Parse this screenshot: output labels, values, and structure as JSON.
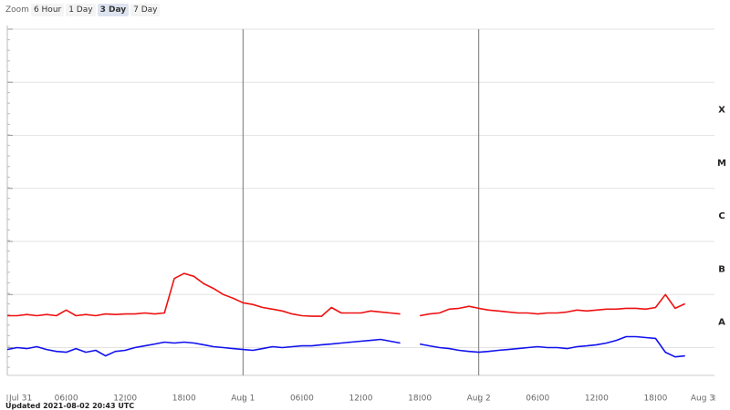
{
  "zoom": {
    "label": "Zoom",
    "buttons": [
      "6 Hour",
      "1 Day",
      "3 Day",
      "7 Day"
    ],
    "selected": 2
  },
  "footer": "Updated 2021-08-02 20:43 UTC",
  "chart_data": {
    "type": "line",
    "log_scale": true,
    "grid": true,
    "xlim": [
      0,
      72
    ],
    "xticks": [
      {
        "value": 0,
        "label": "Jul 31"
      },
      {
        "value": 6,
        "label": "06:00"
      },
      {
        "value": 12,
        "label": "12:00"
      },
      {
        "value": 18,
        "label": "18:00"
      },
      {
        "value": 24,
        "label": "Aug 1"
      },
      {
        "value": 30,
        "label": "06:00"
      },
      {
        "value": 36,
        "label": "12:00"
      },
      {
        "value": 42,
        "label": "18:00"
      },
      {
        "value": 48,
        "label": "Aug 2"
      },
      {
        "value": 54,
        "label": "06:00"
      },
      {
        "value": 60,
        "label": "12:00"
      },
      {
        "value": 66,
        "label": "18:00"
      },
      {
        "value": 72,
        "label": "Aug 3"
      }
    ],
    "day_lines": [
      24,
      48
    ],
    "ylim": [
      3e-09,
      0.01
    ],
    "yticks": [
      {
        "value": 1e-08,
        "label": null
      },
      {
        "value": 1e-07,
        "label": null
      },
      {
        "value": 1e-06,
        "label": null
      },
      {
        "value": 1e-05,
        "label": null
      },
      {
        "value": 0.0001,
        "label": null
      },
      {
        "value": 0.001,
        "label": null
      },
      {
        "value": 0.01,
        "label": null
      }
    ],
    "y2lim": [
      3e-09,
      0.01
    ],
    "y2ticks": [
      {
        "value": 3e-08,
        "label": "A"
      },
      {
        "value": 3e-07,
        "label": "B"
      },
      {
        "value": 3e-06,
        "label": "C"
      },
      {
        "value": 3e-05,
        "label": "M"
      },
      {
        "value": 0.0003,
        "label": "X"
      }
    ],
    "x": [
      0,
      1,
      2,
      3,
      4,
      5,
      6,
      7,
      8,
      9,
      10,
      11,
      12,
      13,
      14,
      15,
      16,
      17,
      18,
      19,
      20,
      21,
      22,
      23,
      24,
      25,
      26,
      27,
      28,
      29,
      30,
      31,
      32,
      33,
      34,
      35,
      36,
      37,
      38,
      39,
      40,
      41,
      42,
      43,
      44,
      45,
      46,
      47,
      48,
      49,
      50,
      51,
      52,
      53,
      54,
      55,
      56,
      57,
      58,
      59,
      60,
      61,
      62,
      63,
      64,
      65,
      66,
      67,
      68,
      69
    ],
    "series": [
      {
        "color": "#ee1111",
        "values": [
          4e-08,
          4e-08,
          4.2e-08,
          4e-08,
          4.2e-08,
          4e-08,
          5.1e-08,
          4e-08,
          4.2e-08,
          4e-08,
          4.3e-08,
          4.2e-08,
          4.3e-08,
          4.3e-08,
          4.5e-08,
          4.3e-08,
          4.5e-08,
          2e-07,
          2.5e-07,
          2.2e-07,
          1.6e-07,
          1.3e-07,
          1e-07,
          8.5e-08,
          7e-08,
          6.5e-08,
          5.7e-08,
          5.3e-08,
          4.9e-08,
          4.3e-08,
          4e-08,
          3.9e-08,
          3.9e-08,
          5.7e-08,
          4.5e-08,
          4.5e-08,
          4.5e-08,
          4.9e-08,
          4.7e-08,
          4.5e-08,
          4.3e-08,
          null,
          4e-08,
          4.3e-08,
          4.5e-08,
          5.3e-08,
          5.5e-08,
          6e-08,
          5.5e-08,
          5.1e-08,
          4.9e-08,
          4.7e-08,
          4.5e-08,
          4.5e-08,
          4.3e-08,
          4.5e-08,
          4.5e-08,
          4.7e-08,
          5.1e-08,
          4.9e-08,
          5.1e-08,
          5.3e-08,
          5.3e-08,
          5.5e-08,
          5.5e-08,
          5.3e-08,
          5.7e-08,
          1e-07,
          5.5e-08,
          6.7e-08
        ]
      },
      {
        "color": "#1111ee",
        "values": [
          9.2e-09,
          1e-08,
          9.6e-09,
          1.04e-08,
          9.2e-09,
          8.5e-09,
          8.2e-09,
          9.6e-09,
          8.2e-09,
          8.9e-09,
          7e-09,
          8.5e-09,
          8.9e-09,
          1e-08,
          1.08e-08,
          1.17e-08,
          1.27e-08,
          1.22e-08,
          1.27e-08,
          1.22e-08,
          1.13e-08,
          1.04e-08,
          1e-08,
          9.6e-09,
          9.2e-09,
          8.9e-09,
          9.6e-09,
          1.04e-08,
          1e-08,
          1.04e-08,
          1.08e-08,
          1.08e-08,
          1.13e-08,
          1.17e-08,
          1.22e-08,
          1.27e-08,
          1.32e-08,
          1.37e-08,
          1.43e-08,
          1.32e-08,
          1.22e-08,
          null,
          1.17e-08,
          1.08e-08,
          1e-08,
          9.6e-09,
          8.9e-09,
          8.5e-09,
          8.2e-09,
          8.5e-09,
          8.9e-09,
          9.2e-09,
          9.6e-09,
          1e-08,
          1.04e-08,
          1e-08,
          1e-08,
          9.6e-09,
          1.04e-08,
          1.08e-08,
          1.13e-08,
          1.22e-08,
          1.37e-08,
          1.61e-08,
          1.61e-08,
          1.55e-08,
          1.49e-08,
          8.2e-09,
          6.7e-09,
          7e-09
        ]
      }
    ]
  }
}
